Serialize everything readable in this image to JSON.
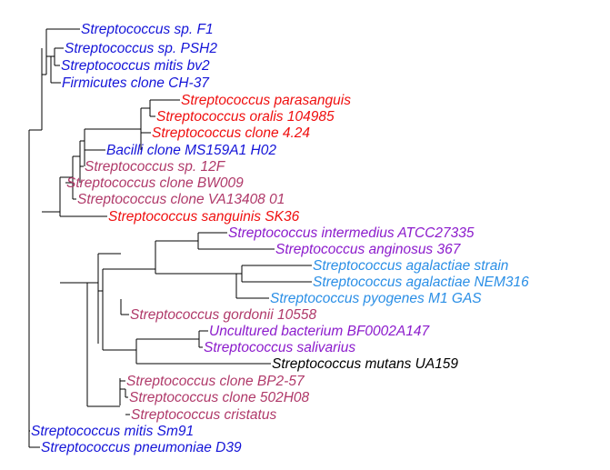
{
  "colors": {
    "blue": "#1515d8",
    "red": "#ef1010",
    "mauve": "#b03a6a",
    "purple": "#8c1ccc",
    "sky": "#2b8fe6",
    "black": "#000000",
    "branch": "#000000"
  },
  "taxa": [
    {
      "label": "Streptococcus sp. F1",
      "color": "blue"
    },
    {
      "label": "Streptococcus sp. PSH2",
      "color": "blue"
    },
    {
      "label": "Streptococcus mitis bv2",
      "color": "blue"
    },
    {
      "label": "Firmicutes clone CH-37",
      "color": "blue"
    },
    {
      "label": "Streptococcus parasanguis",
      "color": "red"
    },
    {
      "label": "Streptococcus oralis 104985",
      "color": "red"
    },
    {
      "label": "Streptococcus clone 4.24",
      "color": "red"
    },
    {
      "label": "Bacilli clone MS159A1 H02",
      "color": "blue"
    },
    {
      "label": "Streptococcus sp. 12F",
      "color": "mauve"
    },
    {
      "label": "Streptococcus clone BW009",
      "color": "mauve"
    },
    {
      "label": "Streptococcus clone VA13408 01",
      "color": "mauve"
    },
    {
      "label": "Streptococcus sanguinis SK36",
      "color": "red"
    },
    {
      "label": "Streptococcus intermedius ATCC27335",
      "color": "purple"
    },
    {
      "label": "Streptococcus anginosus 367",
      "color": "purple"
    },
    {
      "label": "Streptococcus agalactiae strain",
      "color": "sky"
    },
    {
      "label": "Streptococcus agalactiae NEM316",
      "color": "sky"
    },
    {
      "label": "Streptococcus pyogenes M1 GAS",
      "color": "sky"
    },
    {
      "label": "Streptococcus gordonii 10558",
      "color": "mauve"
    },
    {
      "label": "Uncultured bacterium BF0002A147",
      "color": "purple"
    },
    {
      "label": "Streptococcus salivarius",
      "color": "purple"
    },
    {
      "label": "Streptococcus mutans UA159",
      "color": "black"
    },
    {
      "label": "Streptococcus clone BP2-57",
      "color": "mauve"
    },
    {
      "label": "Streptococcus clone 502H08",
      "color": "mauve"
    },
    {
      "label": "Streptococcus cristatus",
      "color": "mauve"
    },
    {
      "label": "Streptococcus mitis Sm91",
      "color": "blue"
    },
    {
      "label": "Streptococcus pneumoniae D39",
      "color": "blue"
    }
  ]
}
